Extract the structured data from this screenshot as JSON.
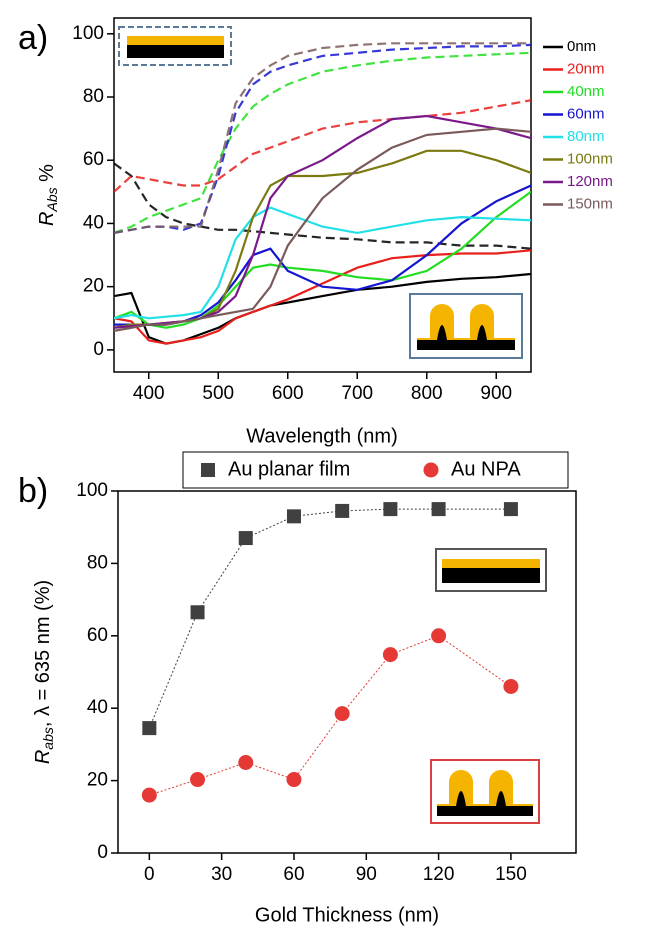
{
  "chart_data": [
    {
      "type": "line",
      "panel_label": "a)",
      "xlabel": "Wavelength (nm)",
      "ylabel": {
        "main": "R",
        "sub": "Abs",
        "rest": " %"
      },
      "x": [
        350,
        375,
        400,
        425,
        450,
        475,
        500,
        525,
        550,
        575,
        600,
        650,
        700,
        750,
        800,
        850,
        900,
        950
      ],
      "xlim": [
        350,
        950
      ],
      "xticks": [
        400,
        500,
        600,
        700,
        800,
        900
      ],
      "ylim": [
        -7,
        105
      ],
      "yticks": [
        0,
        20,
        40,
        60,
        80,
        100
      ],
      "series": [
        {
          "name": "0nm",
          "color": "#000000",
          "values": [
            17,
            18,
            4,
            2,
            3,
            5,
            7,
            10,
            12,
            14,
            15,
            17,
            19,
            20,
            21.5,
            22.5,
            23,
            24
          ],
          "dashed_values": [
            59,
            55,
            46,
            42,
            40,
            39,
            38,
            38,
            37.5,
            37,
            36.5,
            35.5,
            35,
            34,
            34,
            33,
            33,
            32
          ]
        },
        {
          "name": "20nm",
          "color": "#e8201c",
          "values": [
            10,
            9,
            3,
            2,
            3,
            4,
            6,
            10,
            12,
            14,
            16,
            21,
            26,
            29,
            30,
            30.5,
            30.5,
            31.5
          ],
          "dashed_values": [
            50,
            55,
            54,
            53,
            52,
            52,
            54,
            58,
            62,
            64,
            66,
            70,
            72,
            73,
            74,
            75,
            77,
            79
          ]
        },
        {
          "name": "40nm",
          "color": "#22dd22",
          "values": [
            10,
            12,
            8,
            7,
            8,
            10,
            14,
            20,
            26,
            27,
            26,
            25,
            23,
            22,
            25,
            32,
            42,
            50
          ],
          "dashed_values": [
            37,
            39,
            42,
            44,
            46,
            48,
            60,
            70,
            77,
            81,
            84,
            88,
            90,
            91.5,
            92.5,
            93,
            93.5,
            94
          ]
        },
        {
          "name": "60nm",
          "color": "#1515d0",
          "values": [
            8,
            8,
            8,
            8,
            9,
            11,
            15,
            22,
            30,
            32,
            25,
            20,
            19,
            22,
            30,
            40,
            47,
            52
          ],
          "dashed_values": [
            37,
            38,
            39,
            39,
            38,
            40,
            55,
            75,
            84,
            88,
            90,
            93,
            94,
            95,
            95.5,
            96,
            96,
            96.5
          ]
        },
        {
          "name": "80nm",
          "color": "#22e0e8",
          "values": [
            10,
            11,
            10,
            10.5,
            11,
            12,
            20,
            35,
            42,
            45,
            43,
            39,
            37,
            39,
            41,
            42,
            41.5,
            41
          ]
        },
        {
          "name": "100nm",
          "color": "#7a7a10",
          "values": [
            7,
            8,
            8,
            8.5,
            9,
            10,
            13,
            25,
            42,
            52,
            55,
            55,
            56,
            59,
            63,
            63,
            60,
            56
          ]
        },
        {
          "name": "120nm",
          "color": "#7a1a8a",
          "values": [
            7,
            7.5,
            8,
            8.5,
            9,
            10,
            12,
            17,
            30,
            48,
            55,
            60,
            67,
            73,
            74,
            72,
            70,
            67
          ]
        },
        {
          "name": "150nm",
          "color": "#7a5a5a",
          "values": [
            6,
            7,
            8,
            8,
            9,
            10,
            11,
            12,
            13,
            20,
            33,
            48,
            57,
            64,
            68,
            69,
            70,
            69
          ],
          "dashed_values": [
            37,
            38,
            39,
            39,
            39,
            39,
            57,
            78,
            86,
            90,
            93,
            95.5,
            96.5,
            97,
            97,
            97,
            97,
            97
          ]
        }
      ]
    },
    {
      "type": "scatter",
      "panel_label": "b)",
      "xlabel": "Gold Thickness (nm)",
      "ylabel": {
        "main": "R",
        "sub": "abs",
        "rest": ", λ = 635 nm (%)"
      },
      "x": [
        0,
        20,
        40,
        60,
        80,
        100,
        120,
        150
      ],
      "xlim": [
        -13,
        177
      ],
      "xticks": [
        0,
        30,
        60,
        90,
        120,
        150
      ],
      "ylim": [
        0,
        100
      ],
      "yticks": [
        0,
        20,
        40,
        60,
        80,
        100
      ],
      "series": [
        {
          "name": "Au planar film",
          "color": "#404040",
          "marker": "square",
          "values": [
            34.5,
            66.5,
            87,
            93,
            94.5,
            95,
            95,
            95
          ]
        },
        {
          "name": "Au NPA",
          "color": "#e53935",
          "marker": "circle",
          "values": [
            16,
            20.3,
            25,
            20.3,
            38.5,
            54.8,
            60,
            46
          ]
        }
      ]
    }
  ]
}
